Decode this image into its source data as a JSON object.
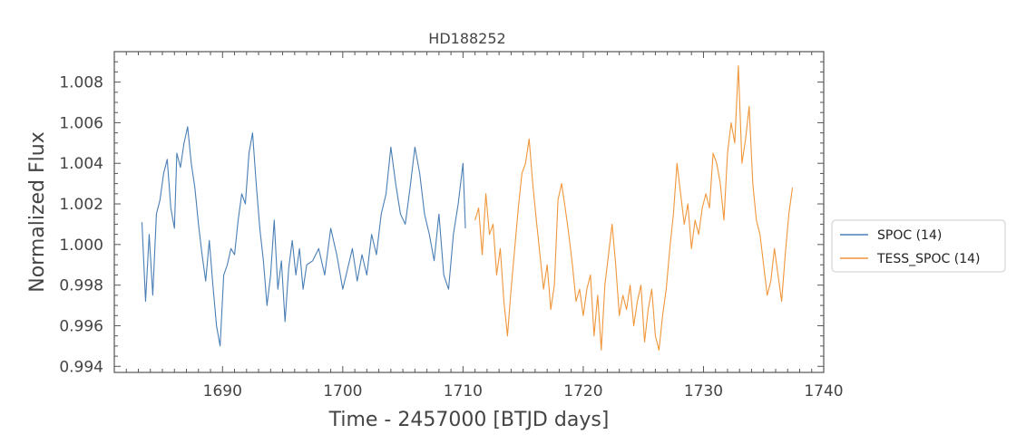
{
  "chart_data": {
    "type": "line",
    "title": "HD188252",
    "xlabel": "Time - 2457000 [BTJD days]",
    "ylabel": "Normalized Flux",
    "xlim": [
      1681.0,
      1740.0
    ],
    "ylim": [
      0.9937,
      1.0095
    ],
    "xticks": [
      1690,
      1700,
      1710,
      1720,
      1730,
      1740
    ],
    "xtick_labels": [
      "1690",
      "1700",
      "1710",
      "1720",
      "1730",
      "1740"
    ],
    "yticks": [
      0.994,
      0.996,
      0.998,
      1.0,
      1.002,
      1.004,
      1.006,
      1.008
    ],
    "ytick_labels": [
      "0.994",
      "0.996",
      "0.998",
      "1.000",
      "1.002",
      "1.004",
      "1.006",
      "1.008"
    ],
    "legend_position": "outside-right",
    "grid": false,
    "series": [
      {
        "name": "SPOC (14)",
        "color": "#4a7fb5",
        "x": [
          1683.3,
          1683.6,
          1683.9,
          1684.2,
          1684.5,
          1684.8,
          1685.1,
          1685.4,
          1685.7,
          1686.0,
          1686.2,
          1686.5,
          1686.8,
          1687.1,
          1687.4,
          1687.7,
          1688.0,
          1688.3,
          1688.6,
          1688.9,
          1689.2,
          1689.5,
          1689.8,
          1690.1,
          1690.4,
          1690.7,
          1691.0,
          1691.3,
          1691.6,
          1691.9,
          1692.2,
          1692.5,
          1692.8,
          1693.1,
          1693.4,
          1693.7,
          1694.0,
          1694.3,
          1694.6,
          1694.9,
          1695.2,
          1695.5,
          1695.8,
          1696.1,
          1696.4,
          1696.7,
          1697.0,
          1697.5,
          1698.0,
          1698.5,
          1699.0,
          1699.5,
          1700.0,
          1700.4,
          1700.8,
          1701.2,
          1701.6,
          1702.0,
          1702.4,
          1702.8,
          1703.2,
          1703.6,
          1704.0,
          1704.4,
          1704.8,
          1705.2,
          1705.6,
          1706.0,
          1706.4,
          1706.8,
          1707.2,
          1707.6,
          1708.0,
          1708.4,
          1708.8,
          1709.2,
          1709.6,
          1710.0,
          1710.2
        ],
        "y": [
          1.0011,
          0.9972,
          1.0005,
          0.9975,
          1.0015,
          1.0022,
          1.0035,
          1.0042,
          1.0018,
          1.0008,
          1.0045,
          1.0038,
          1.005,
          1.0058,
          1.004,
          1.0028,
          1.001,
          0.9995,
          0.9982,
          1.0002,
          0.998,
          0.996,
          0.995,
          0.9985,
          0.999,
          0.9998,
          0.9995,
          1.0012,
          1.0025,
          1.002,
          1.0045,
          1.0055,
          1.003,
          1.0008,
          0.9992,
          0.997,
          0.9985,
          1.0012,
          0.9978,
          0.9992,
          0.9962,
          0.9988,
          1.0002,
          0.9985,
          0.9998,
          0.9978,
          0.999,
          0.9992,
          0.9998,
          0.9985,
          1.0008,
          0.9995,
          0.9978,
          0.9988,
          0.9998,
          0.9982,
          0.9995,
          0.9985,
          1.0005,
          0.9995,
          1.0015,
          1.0025,
          1.0048,
          1.003,
          1.0015,
          1.001,
          1.0028,
          1.0048,
          1.0035,
          1.0015,
          1.0005,
          0.9992,
          1.0015,
          0.9985,
          0.9978,
          1.0005,
          1.002,
          1.004,
          1.0008
        ]
      },
      {
        "name": "TESS_SPOC (14)",
        "color": "#f0963a",
        "x": [
          1711.0,
          1711.3,
          1711.6,
          1711.9,
          1712.2,
          1712.5,
          1712.8,
          1713.1,
          1713.4,
          1713.7,
          1714.0,
          1714.3,
          1714.6,
          1714.9,
          1715.2,
          1715.5,
          1715.8,
          1716.1,
          1716.4,
          1716.7,
          1717.0,
          1717.3,
          1717.6,
          1717.9,
          1718.2,
          1718.5,
          1718.8,
          1719.1,
          1719.4,
          1719.7,
          1720.0,
          1720.3,
          1720.6,
          1720.9,
          1721.2,
          1721.5,
          1721.8,
          1722.1,
          1722.4,
          1722.7,
          1723.0,
          1723.3,
          1723.6,
          1723.9,
          1724.2,
          1724.5,
          1724.8,
          1725.1,
          1725.4,
          1725.7,
          1726.0,
          1726.3,
          1726.6,
          1726.9,
          1727.2,
          1727.5,
          1727.8,
          1728.1,
          1728.4,
          1728.7,
          1729.0,
          1729.3,
          1729.6,
          1729.9,
          1730.2,
          1730.5,
          1730.8,
          1731.1,
          1731.4,
          1731.7,
          1732.0,
          1732.3,
          1732.6,
          1732.9,
          1733.2,
          1733.5,
          1733.8,
          1734.1,
          1734.4,
          1734.7,
          1735.0,
          1735.3,
          1735.6,
          1735.9,
          1736.2,
          1736.5,
          1736.8,
          1737.1,
          1737.4
        ],
        "y": [
          1.0012,
          1.0018,
          0.9995,
          1.0025,
          1.0005,
          1.001,
          0.9985,
          0.9998,
          0.9972,
          0.9955,
          0.9978,
          0.9998,
          1.0018,
          1.0035,
          1.004,
          1.0052,
          1.003,
          1.0012,
          0.9995,
          0.9978,
          0.999,
          0.9968,
          0.998,
          1.0022,
          1.003,
          1.0018,
          1.0005,
          0.999,
          0.9972,
          0.9978,
          0.9965,
          0.9978,
          0.9985,
          0.9955,
          0.9975,
          0.9948,
          0.998,
          0.9995,
          1.001,
          0.999,
          0.9965,
          0.9975,
          0.9968,
          0.998,
          0.996,
          0.9972,
          0.998,
          0.9952,
          0.9968,
          0.9978,
          0.9955,
          0.9948,
          0.9965,
          0.9978,
          0.9998,
          1.0015,
          1.004,
          1.0025,
          1.001,
          1.002,
          0.9998,
          1.0012,
          1.0005,
          1.0018,
          1.0025,
          1.0018,
          1.0045,
          1.004,
          1.003,
          1.0012,
          1.0045,
          1.006,
          1.005,
          1.0088,
          1.004,
          1.0052,
          1.0068,
          1.003,
          1.0012,
          1.0005,
          0.999,
          0.9975,
          0.9982,
          0.9998,
          0.9985,
          0.9972,
          0.9995,
          1.0015,
          1.0028
        ]
      }
    ]
  }
}
